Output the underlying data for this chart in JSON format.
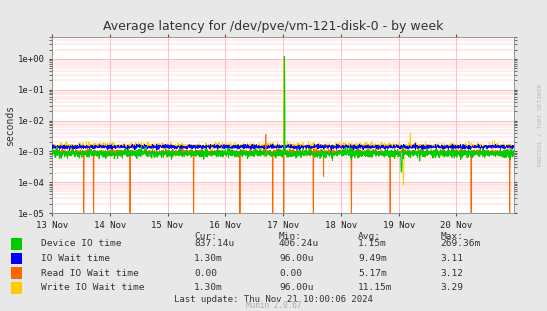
{
  "title": "Average latency for /dev/pve/vm-121-disk-0 - by week",
  "ylabel": "seconds",
  "watermark": "Munin 2.0.67",
  "rrdtool_label": "RRDTOOL / TOBI OETIKER",
  "background_color": "#e8e8e8",
  "plot_bg_color": "#ffffff",
  "grid_color": "#ffaaaa",
  "x_tick_labels": [
    "13 Nov",
    "14 Nov",
    "15 Nov",
    "16 Nov",
    "17 Nov",
    "18 Nov",
    "19 Nov",
    "20 Nov"
  ],
  "legend_entries": [
    {
      "label": "Device IO time",
      "color": "#00cc00",
      "cur": "837.14u",
      "min": "406.24u",
      "avg": "1.15m",
      "max": "269.36m"
    },
    {
      "label": "IO Wait time",
      "color": "#0000ff",
      "cur": "1.30m",
      "min": "96.00u",
      "avg": "9.49m",
      "max": "3.11"
    },
    {
      "label": "Read IO Wait time",
      "color": "#ff6600",
      "cur": "0.00",
      "min": "0.00",
      "avg": "5.17m",
      "max": "3.12"
    },
    {
      "label": "Write IO Wait time",
      "color": "#ffcc00",
      "cur": "1.30m",
      "min": "96.00u",
      "avg": "11.15m",
      "max": "3.29"
    }
  ],
  "last_update": "Last update: Thu Nov 21 10:00:06 2024",
  "n_points": 2016,
  "base_dev_io": 0.00085,
  "base_io_wait": 0.0014,
  "base_write_io": 0.0015,
  "base_read_io": 0.00095
}
